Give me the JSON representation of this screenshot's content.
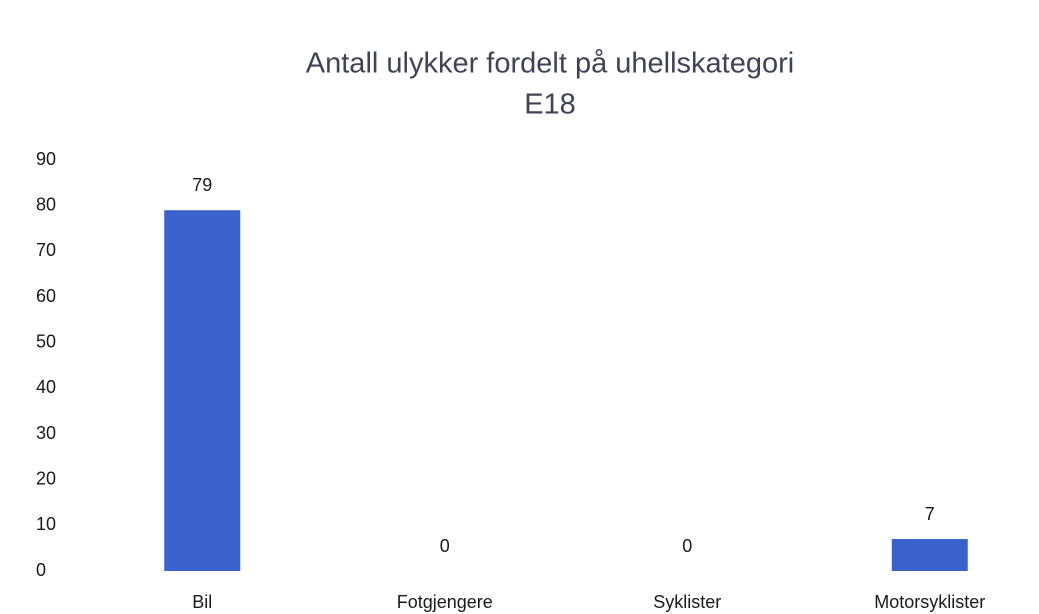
{
  "chart_data": {
    "type": "bar",
    "title": "Antall ulykker fordelt på uhellskategori",
    "subtitle": "E18",
    "categories": [
      "Bil",
      "Fotgjengere",
      "Syklister",
      "Motorsyklister"
    ],
    "values": [
      79,
      0,
      0,
      7
    ],
    "color": "#3a62cc",
    "ylim": [
      0,
      90
    ],
    "yticks": [
      0,
      10,
      20,
      30,
      40,
      50,
      60,
      70,
      80,
      90
    ],
    "grid": false
  }
}
